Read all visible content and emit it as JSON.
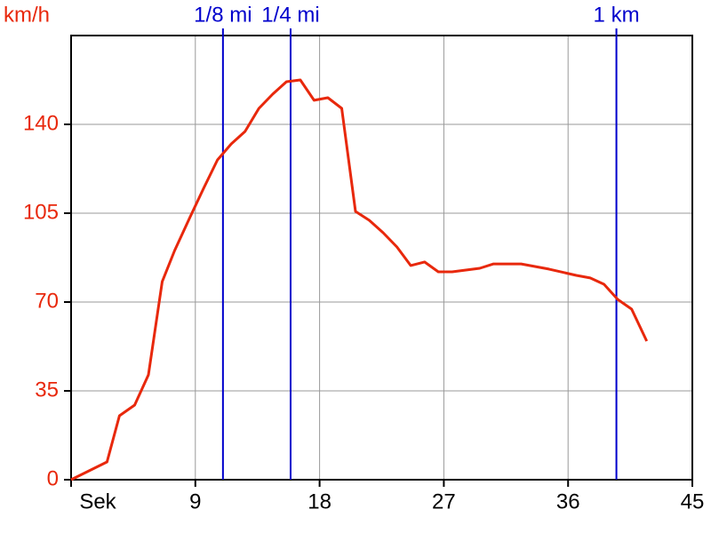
{
  "chart_data": {
    "type": "line",
    "y_label": "km/h",
    "x": [
      0,
      2.6,
      3.5,
      4.6,
      5.6,
      6.6,
      7.5,
      8.6,
      9.6,
      10.6,
      11.6,
      12.6,
      13.6,
      14.6,
      15.6,
      16.6,
      17.6,
      18.6,
      19.6,
      20.6,
      21.6,
      22.6,
      23.6,
      24.6,
      25.6,
      26.6,
      27.6,
      29.6,
      30.6,
      32.6,
      34.6,
      36.6,
      37.6,
      38.6,
      39.6,
      40.6,
      41.7
    ],
    "series": [
      {
        "color": "#e8280c",
        "values": [
          0,
          7,
          25.2,
          29.4,
          41.3,
          78,
          90.3,
          103.3,
          114.8,
          126,
          132.3,
          137.2,
          146.3,
          151.9,
          156.8,
          157.5,
          149.5,
          150.5,
          146.3,
          105.7,
          102.2,
          97.3,
          91.7,
          84.4,
          85.8,
          81.9,
          81.9,
          83.3,
          85,
          85,
          83,
          80.5,
          79.5,
          77,
          71,
          67.2,
          54.6
        ]
      }
    ],
    "xlim": [
      0,
      45
    ],
    "xticks": [
      {
        "value": 0,
        "label": "Sek"
      },
      9,
      18,
      27,
      36,
      45
    ],
    "ylim": [
      0,
      175
    ],
    "yticks": [
      0,
      35,
      70,
      105,
      140
    ],
    "grid": true,
    "markers": [
      {
        "x": 11,
        "label": "1/8 mi"
      },
      {
        "x": 15.9,
        "label": "1/4 mi"
      },
      {
        "x": 39.5,
        "label": "1 km"
      }
    ],
    "marker_color": "#0000cc"
  }
}
